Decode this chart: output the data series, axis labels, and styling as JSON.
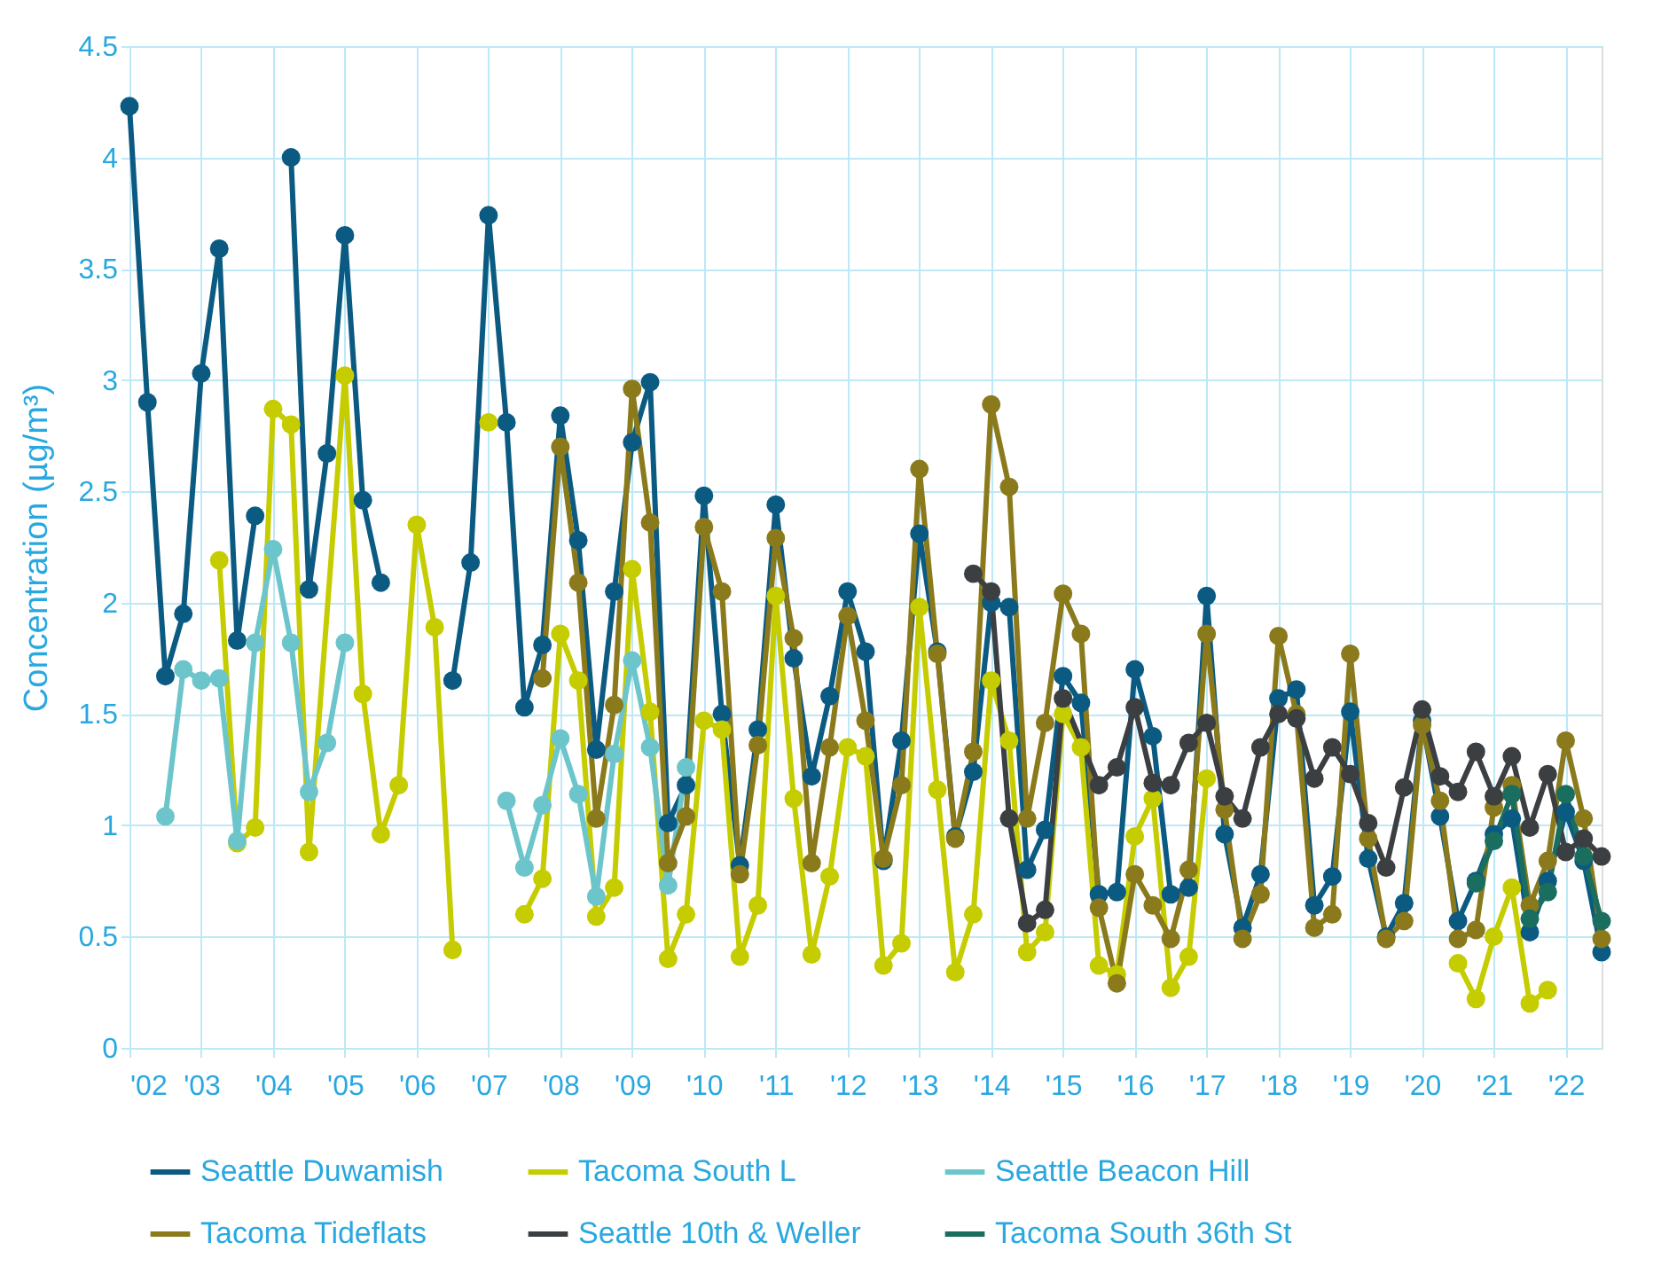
{
  "chart_data": {
    "type": "line",
    "ylabel": "Concentration (µg/m³)",
    "x": [
      2002,
      2002.25,
      2002.5,
      2002.75,
      2003,
      2003.25,
      2003.5,
      2003.75,
      2004,
      2004.25,
      2004.5,
      2004.75,
      2005,
      2005.25,
      2005.5,
      2005.75,
      2006,
      2006.25,
      2006.5,
      2006.75,
      2007,
      2007.25,
      2007.5,
      2007.75,
      2008,
      2008.25,
      2008.5,
      2008.75,
      2009,
      2009.25,
      2009.5,
      2009.75,
      2010,
      2010.25,
      2010.5,
      2010.75,
      2011,
      2011.25,
      2011.5,
      2011.75,
      2012,
      2012.25,
      2012.5,
      2012.75,
      2013,
      2013.25,
      2013.5,
      2013.75,
      2014,
      2014.25,
      2014.5,
      2014.75,
      2015,
      2015.25,
      2015.5,
      2015.75,
      2016,
      2016.25,
      2016.5,
      2016.75,
      2017,
      2017.25,
      2017.5,
      2017.75,
      2018,
      2018.25,
      2018.5,
      2018.75,
      2019,
      2019.25,
      2019.5,
      2019.75,
      2020,
      2020.25,
      2020.5,
      2020.75,
      2021,
      2021.25,
      2021.5,
      2021.75,
      2022,
      2022.25,
      2022.5
    ],
    "series": [
      {
        "name": "Seattle Duwamish",
        "color": "#0b5a82",
        "values": [
          4.23,
          2.9,
          1.67,
          1.95,
          3.03,
          3.59,
          1.83,
          2.39,
          null,
          4.0,
          2.06,
          2.67,
          3.65,
          2.46,
          2.09,
          null,
          null,
          null,
          1.65,
          2.18,
          3.74,
          2.81,
          1.53,
          1.81,
          2.84,
          2.28,
          1.34,
          2.05,
          2.72,
          2.99,
          1.01,
          1.18,
          2.48,
          1.5,
          0.82,
          1.43,
          2.44,
          1.75,
          1.22,
          1.58,
          2.05,
          1.78,
          0.84,
          1.38,
          2.31,
          1.78,
          0.95,
          1.24,
          2.0,
          1.98,
          0.8,
          0.98,
          1.67,
          1.55,
          0.69,
          0.7,
          1.7,
          1.4,
          0.69,
          0.72,
          2.03,
          0.96,
          0.54,
          0.78,
          1.57,
          1.61,
          0.64,
          0.77,
          1.51,
          0.85,
          0.5,
          0.65,
          1.47,
          1.04,
          0.57,
          0.75,
          0.96,
          1.03,
          0.52,
          0.75,
          1.06,
          0.84,
          0.43
        ]
      },
      {
        "name": "Tacoma South L",
        "color": "#c5cc00",
        "x": [
          2003.25,
          2003.5,
          2003.75,
          2004,
          2004.25,
          2004.5,
          2005,
          2005.25,
          2005.5,
          2005.75,
          2006,
          2006.25,
          2006.5,
          2006.75,
          2007,
          2007.25,
          2007.5,
          2007.75,
          2008,
          2008.25,
          2008.5,
          2008.75,
          2009,
          2009.25,
          2009.5,
          2009.75,
          2010,
          2010.25,
          2010.5,
          2010.75,
          2011,
          2011.25,
          2011.5,
          2011.75,
          2012,
          2012.25,
          2012.5,
          2012.75,
          2013,
          2013.25,
          2013.5,
          2013.75,
          2014,
          2014.25,
          2014.5,
          2014.75,
          2015,
          2015.25,
          2015.5,
          2015.75,
          2016,
          2016.25,
          2016.5,
          2016.75,
          2017,
          2017.25,
          2020.5,
          2020.75,
          2021,
          2021.25,
          2021.5,
          2021.75
        ],
        "values": [
          2.19,
          0.92,
          0.99,
          2.87,
          2.8,
          0.88,
          3.02,
          1.59,
          0.96,
          1.18,
          2.35,
          1.89,
          0.44,
          null,
          2.81,
          null,
          0.6,
          0.76,
          1.86,
          1.65,
          0.59,
          0.72,
          2.15,
          1.51,
          0.4,
          0.6,
          1.47,
          1.43,
          0.41,
          0.64,
          2.03,
          1.12,
          0.42,
          0.77,
          1.35,
          1.31,
          0.37,
          0.47,
          1.98,
          1.16,
          0.34,
          0.6,
          1.65,
          1.38,
          0.43,
          0.52,
          1.5,
          1.35,
          0.37,
          0.33,
          0.95,
          1.12,
          0.27,
          0.41,
          1.21,
          null,
          0.38,
          0.22,
          0.5,
          0.72,
          0.2,
          0.26
        ]
      },
      {
        "name": "Seattle Beacon Hill",
        "color": "#6cc5cb",
        "values": [
          null,
          null,
          1.04,
          1.7,
          1.65,
          1.66,
          0.93,
          1.82,
          2.24,
          1.82,
          1.15,
          1.37,
          1.82,
          null,
          null,
          null,
          null,
          null,
          null,
          null,
          null,
          1.11,
          0.81,
          1.09,
          1.39,
          1.14,
          0.68,
          1.32,
          1.74,
          1.35,
          0.73,
          1.26,
          null,
          null,
          null,
          null,
          null,
          null,
          null,
          null,
          null,
          null,
          null,
          null,
          null,
          null,
          null,
          null,
          null,
          null,
          null,
          null,
          null,
          null,
          null,
          null,
          null,
          null,
          null,
          null,
          null,
          null,
          null,
          null,
          null,
          null,
          null,
          null,
          null,
          null,
          null,
          null,
          null,
          null,
          null,
          null,
          null,
          null,
          null,
          null,
          null,
          null,
          null
        ]
      },
      {
        "name": "Tacoma Tideflats",
        "color": "#8a7a1c",
        "values": [
          null,
          null,
          null,
          null,
          null,
          null,
          null,
          null,
          null,
          null,
          null,
          null,
          null,
          null,
          null,
          null,
          null,
          null,
          null,
          null,
          null,
          null,
          null,
          1.66,
          2.7,
          2.09,
          1.03,
          1.54,
          2.96,
          2.36,
          0.83,
          1.04,
          2.34,
          2.05,
          0.78,
          1.36,
          2.29,
          1.84,
          0.83,
          1.35,
          1.94,
          1.47,
          0.85,
          1.18,
          2.6,
          1.77,
          0.94,
          1.33,
          2.89,
          2.52,
          1.03,
          1.46,
          2.04,
          1.86,
          0.63,
          0.29,
          0.78,
          0.64,
          0.49,
          0.8,
          1.86,
          1.07,
          0.49,
          0.69,
          1.85,
          1.5,
          0.54,
          0.6,
          1.77,
          0.94,
          0.49,
          0.57,
          1.45,
          1.11,
          0.49,
          0.53,
          1.08,
          1.18,
          0.64,
          0.84,
          1.38,
          1.03,
          0.49
        ]
      },
      {
        "name": "Seattle 10th & Weller",
        "color": "#3c3f42",
        "x": [
          2013.75,
          2014,
          2014.25,
          2014.5,
          2014.75,
          2015,
          2015.5,
          2015.75,
          2016,
          2016.25,
          2016.5,
          2016.75,
          2017,
          2017.25,
          2017.5,
          2017.75,
          2018,
          2018.25,
          2018.5,
          2018.75,
          2019,
          2019.25,
          2019.5,
          2019.75,
          2020,
          2020.25,
          2020.5,
          2020.75,
          2021,
          2021.25,
          2021.5,
          2021.75,
          2022,
          2022.25,
          2022.5
        ],
        "values": [
          2.13,
          2.05,
          1.03,
          0.56,
          0.62,
          1.57,
          1.18,
          1.26,
          1.53,
          1.19,
          1.18,
          1.37,
          1.46,
          1.13,
          1.03,
          1.35,
          1.5,
          1.48,
          1.21,
          1.35,
          1.23,
          1.01,
          0.81,
          1.17,
          1.52,
          1.22,
          1.15,
          1.33,
          1.13,
          1.31,
          0.99,
          1.23,
          0.88,
          0.94,
          0.86
        ]
      },
      {
        "name": "Tacoma South 36th St",
        "color": "#1a6e60",
        "x": [
          2020.75,
          2021,
          2021.25,
          2021.5,
          2021.75,
          2022,
          2022.25,
          2022.5
        ],
        "values": [
          0.74,
          0.93,
          1.14,
          0.58,
          0.7,
          1.14,
          0.86,
          0.57
        ]
      }
    ],
    "xlim": [
      2002,
      2022.5
    ],
    "xticks": [
      {
        "value": 2002,
        "label": "'02"
      },
      {
        "value": 2003,
        "label": "'03"
      },
      {
        "value": 2004,
        "label": "'04"
      },
      {
        "value": 2005,
        "label": "'05"
      },
      {
        "value": 2006,
        "label": "'06"
      },
      {
        "value": 2007,
        "label": "'07"
      },
      {
        "value": 2008,
        "label": "'08"
      },
      {
        "value": 2009,
        "label": "'09"
      },
      {
        "value": 2010,
        "label": "'10"
      },
      {
        "value": 2011,
        "label": "'11"
      },
      {
        "value": 2012,
        "label": "'12"
      },
      {
        "value": 2013,
        "label": "'13"
      },
      {
        "value": 2014,
        "label": "'14"
      },
      {
        "value": 2015,
        "label": "'15"
      },
      {
        "value": 2016,
        "label": "'16"
      },
      {
        "value": 2017,
        "label": "'17"
      },
      {
        "value": 2018,
        "label": "'18"
      },
      {
        "value": 2019,
        "label": "'19"
      },
      {
        "value": 2020,
        "label": "'20"
      },
      {
        "value": 2021,
        "label": "'21"
      },
      {
        "value": 2022,
        "label": "'22"
      }
    ],
    "ylim": [
      0,
      4.5
    ],
    "yticks": [
      0,
      0.5,
      1,
      1.5,
      2,
      2.5,
      3,
      3.5,
      4,
      4.5
    ],
    "grid": true,
    "legend": "bottom",
    "marker": "circle",
    "line_style": "solid"
  }
}
